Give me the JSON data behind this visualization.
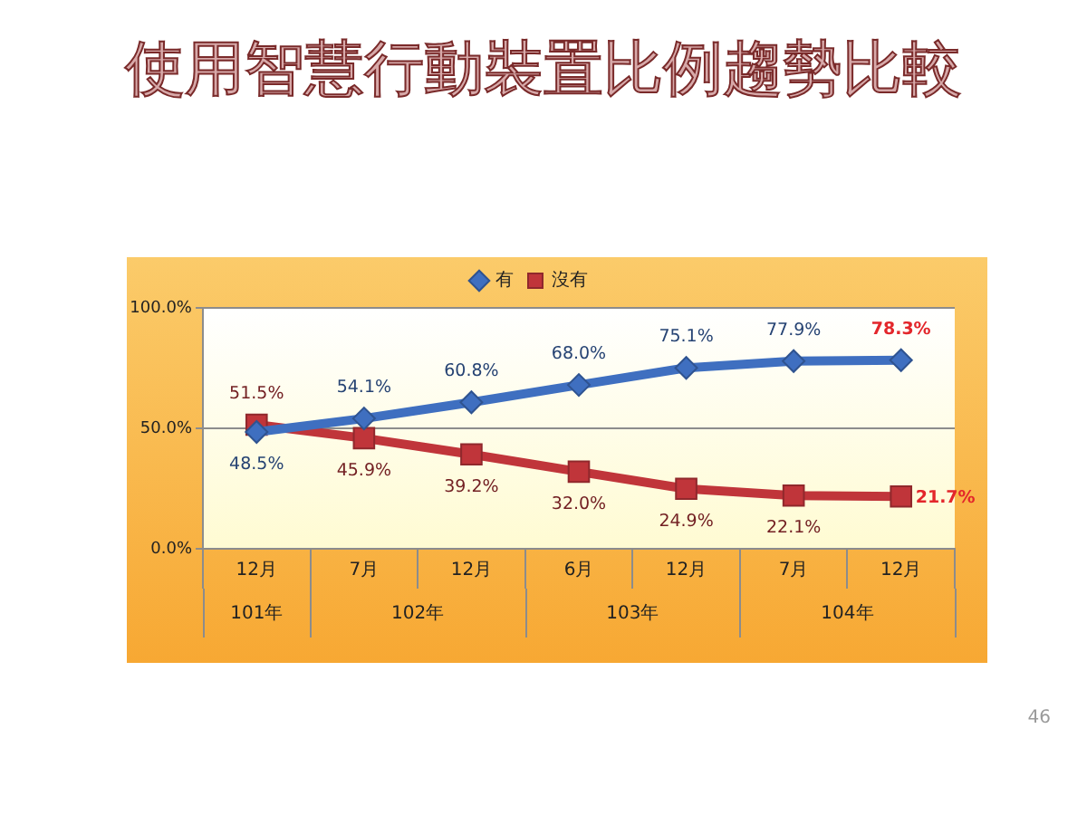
{
  "chart_data": {
    "type": "line",
    "title": "使用智慧行動裝置比例趨勢比較",
    "categories": [
      "12月",
      "7月",
      "12月",
      "6月",
      "12月",
      "7月",
      "12月"
    ],
    "series": [
      {
        "name": "有",
        "color": "#3f6fc0",
        "marker": "diamond",
        "values": [
          48.5,
          54.1,
          60.8,
          68.0,
          75.1,
          77.9,
          78.3
        ],
        "value_labels": [
          "48.5%",
          "54.1%",
          "60.8%",
          "68.0%",
          "75.1%",
          "77.9%",
          "78.3%"
        ]
      },
      {
        "name": "沒有",
        "color": "#c0353a",
        "marker": "square",
        "values": [
          51.5,
          45.9,
          39.2,
          32.0,
          24.9,
          22.1,
          21.7
        ],
        "value_labels": [
          "51.5%",
          "45.9%",
          "39.2%",
          "32.0%",
          "24.9%",
          "22.1%",
          "21.7%"
        ]
      }
    ],
    "ylim": [
      0,
      100
    ],
    "yticks": [
      {
        "value": 0,
        "label": "0.0%"
      },
      {
        "value": 50,
        "label": "50.0%"
      },
      {
        "value": 100,
        "label": "100.0%"
      }
    ],
    "grid": "y",
    "legend": "top",
    "annotations": [
      "101年",
      "102年",
      "103年",
      "104年",
      "46"
    ]
  }
}
